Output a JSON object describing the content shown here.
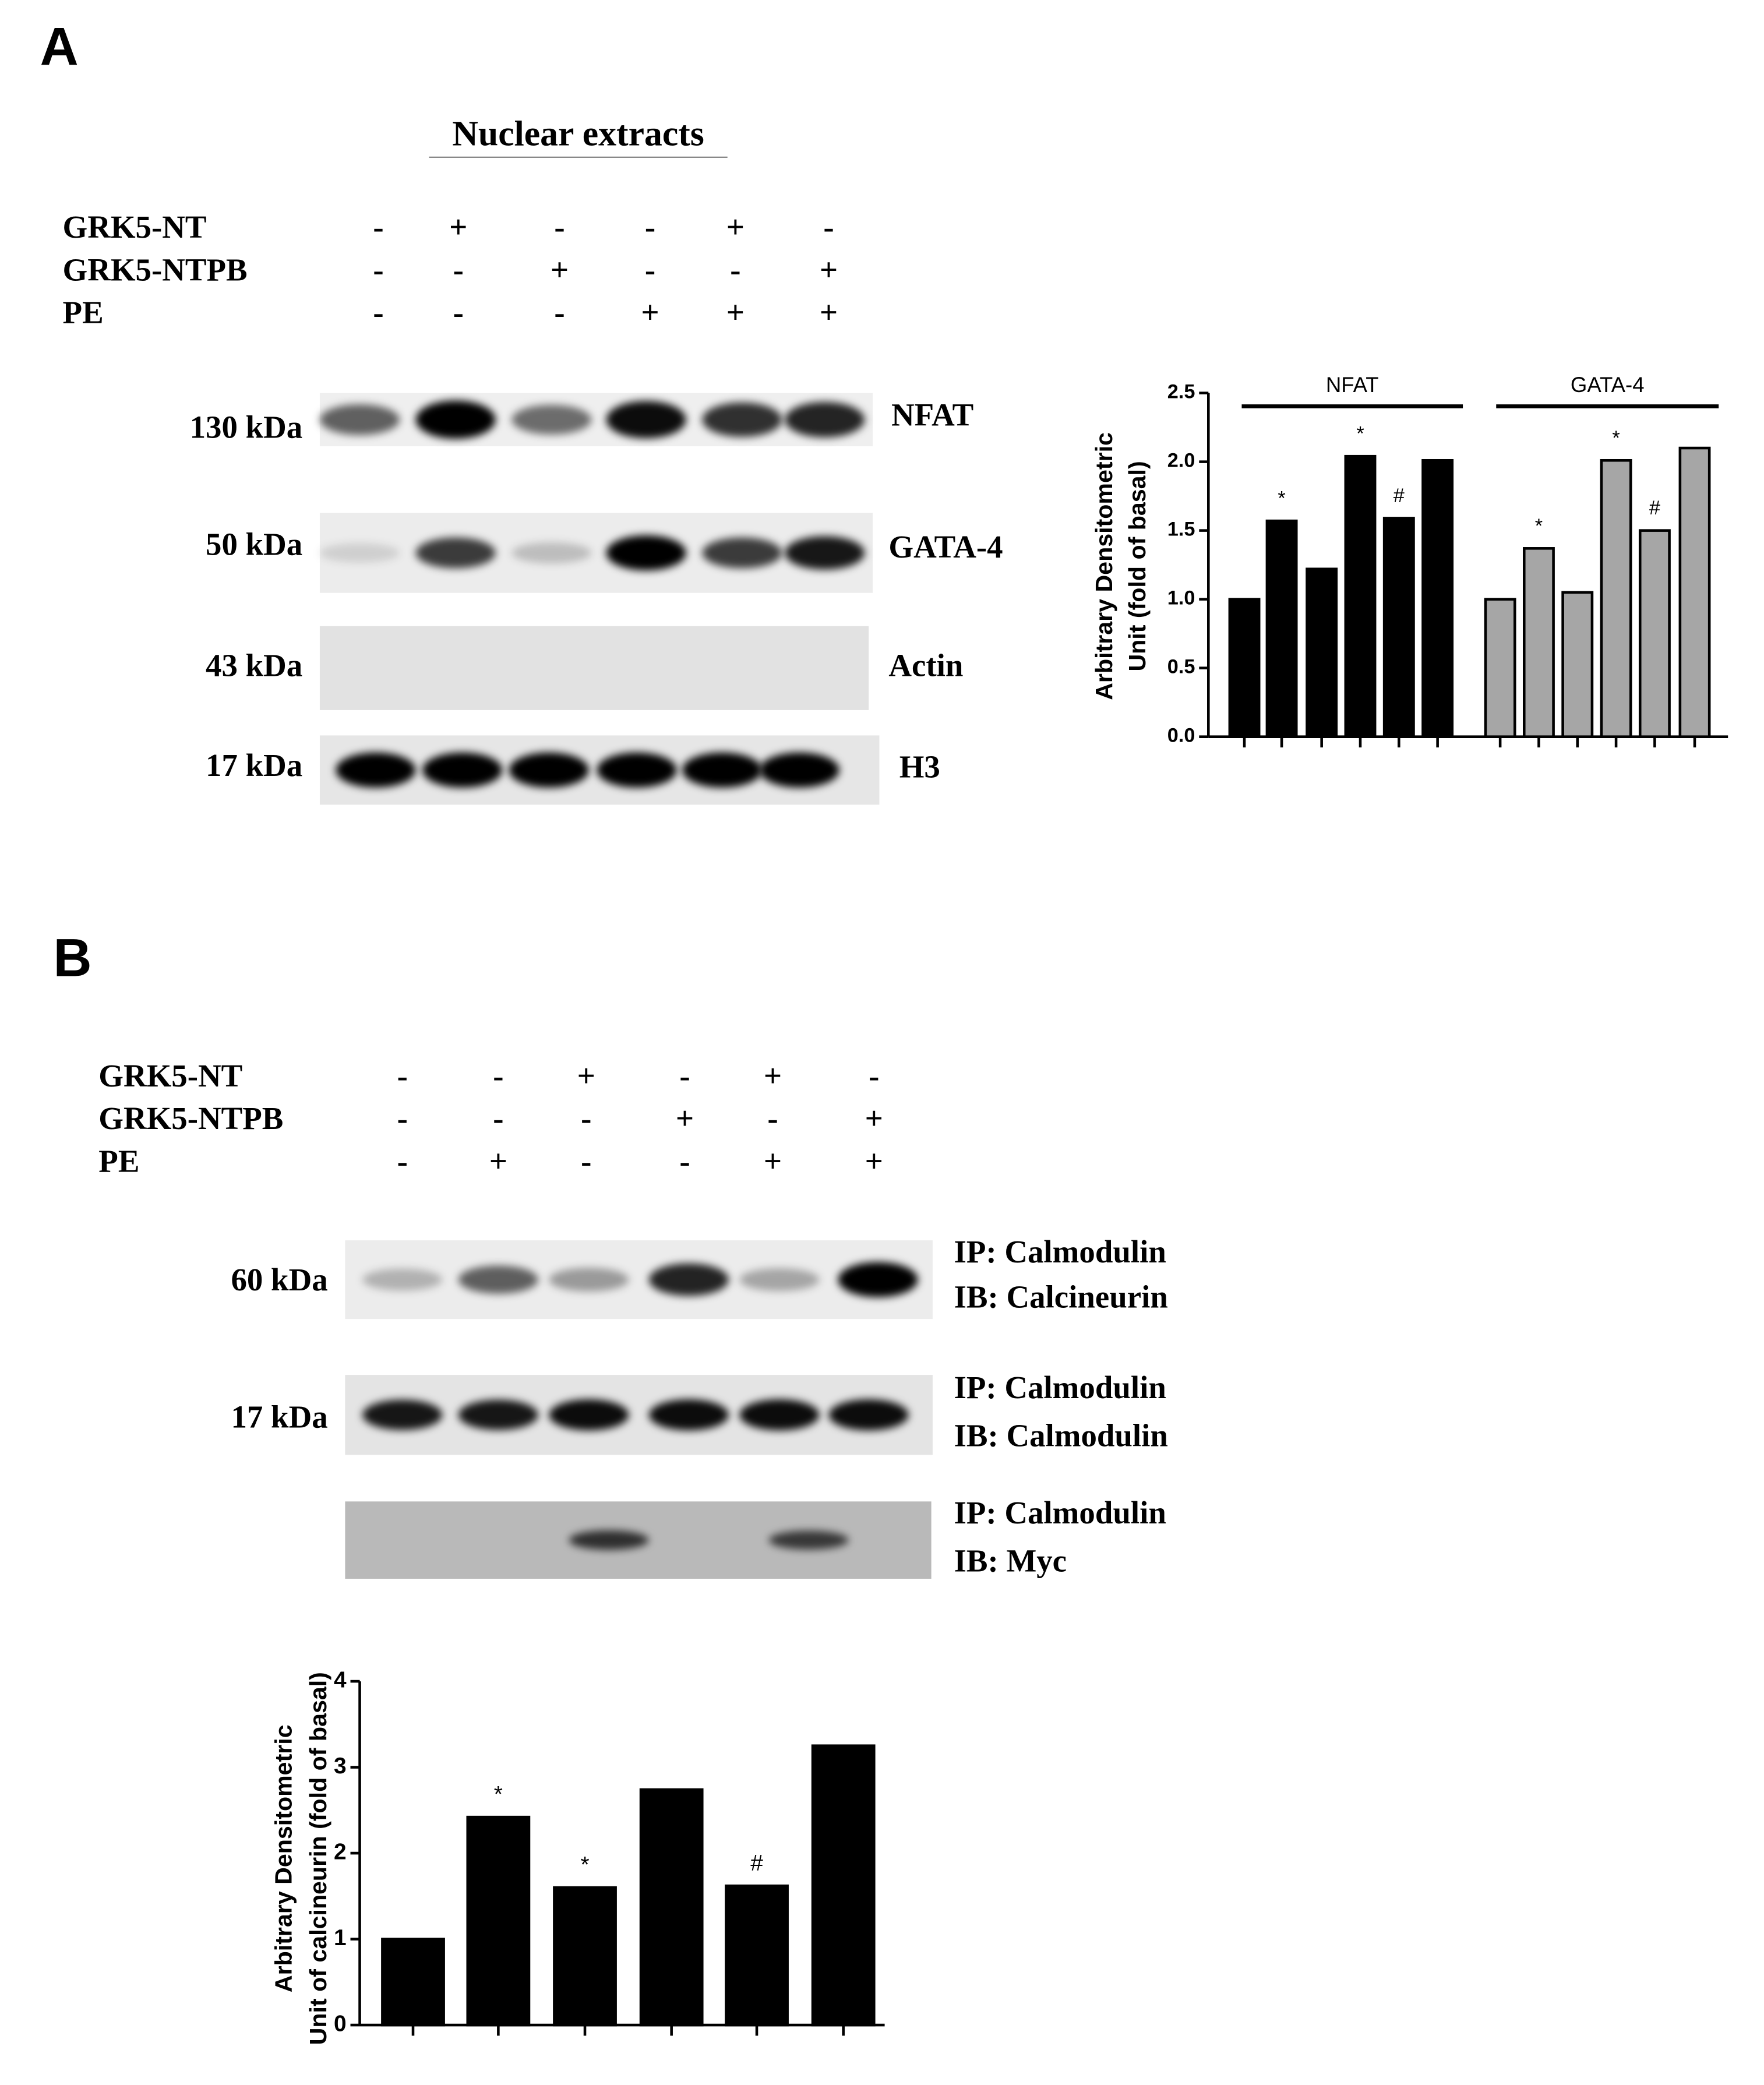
{
  "panels": [
    {
      "label": "A",
      "title": "Nuclear extracts",
      "treatments": [
        {
          "name": "GRK5-NT",
          "signs": [
            "-",
            "+",
            "-",
            "-",
            "+",
            "-"
          ]
        },
        {
          "name": "GRK5-NTPB",
          "signs": [
            "-",
            "-",
            "+",
            "-",
            "-",
            "+"
          ]
        },
        {
          "name": "PE",
          "signs": [
            "-",
            "-",
            "-",
            "+",
            "+",
            "+"
          ]
        }
      ],
      "blots": [
        {
          "size": "130 kDa",
          "label": [
            "NFAT"
          ]
        },
        {
          "size": "50 kDa",
          "label": [
            "GATA-4"
          ]
        },
        {
          "size": "43 kDa",
          "label": [
            "Actin"
          ]
        },
        {
          "size": "17 kDa",
          "label": [
            "H3"
          ]
        }
      ]
    },
    {
      "label": "B",
      "treatments": [
        {
          "name": "GRK5-NT",
          "signs": [
            "-",
            "-",
            "+",
            "-",
            "+",
            "-"
          ]
        },
        {
          "name": "GRK5-NTPB",
          "signs": [
            "-",
            "-",
            "-",
            "+",
            "-",
            "+"
          ]
        },
        {
          "name": "PE",
          "signs": [
            "-",
            "+",
            "-",
            "-",
            "+",
            "+"
          ]
        }
      ],
      "blots": [
        {
          "size": "60 kDa",
          "label": [
            "IP: Calmodulin",
            "IB: Calcineurin"
          ]
        },
        {
          "size": "17 kDa",
          "label": [
            "IP: Calmodulin",
            "IB: Calmodulin"
          ]
        },
        {
          "label": [
            "IP: Calmodulin",
            "IB: Myc"
          ]
        }
      ]
    }
  ],
  "chart_data": [
    {
      "type": "bar",
      "ylabel": [
        "Arbitrary Densitometric",
        "Unit  (fold of basal)"
      ],
      "categories": [
        null,
        null,
        null,
        null,
        null,
        null
      ],
      "series": [
        {
          "name": "NFAT",
          "color": "#000000",
          "values": [
            1.0,
            1.57,
            1.22,
            2.04,
            1.59,
            2.01
          ],
          "markers": [
            null,
            "*",
            null,
            "*",
            "#",
            null
          ]
        },
        {
          "name": "GATA-4",
          "color": "#a6a6a6",
          "values": [
            1.0,
            1.37,
            1.05,
            2.01,
            1.5,
            2.1
          ],
          "markers": [
            null,
            "*",
            null,
            "*",
            "#",
            null
          ]
        }
      ],
      "ylim": [
        0,
        2.5
      ],
      "yticks": [
        {
          "value": 0,
          "label": "0.0"
        },
        {
          "value": 0.5,
          "label": "0.5"
        },
        {
          "value": 1,
          "label": "1.0"
        },
        {
          "value": 1.5,
          "label": "1.5"
        },
        {
          "value": 2,
          "label": "2.0"
        },
        {
          "value": 2.5,
          "label": "2.5"
        }
      ]
    },
    {
      "type": "bar",
      "ylabel": [
        "Arbitrary Densitometric",
        "Unit of calcineurin (fold of basal)"
      ],
      "categories": [
        null,
        null,
        null,
        null,
        null,
        null
      ],
      "series": [
        {
          "color": "#000000",
          "values": [
            1.0,
            2.42,
            1.6,
            2.74,
            1.62,
            3.25
          ],
          "markers": [
            null,
            "*",
            "*",
            null,
            "#",
            null
          ]
        }
      ],
      "ylim": [
        0,
        4
      ],
      "yticks": [
        0,
        1,
        2,
        3,
        4
      ]
    }
  ]
}
